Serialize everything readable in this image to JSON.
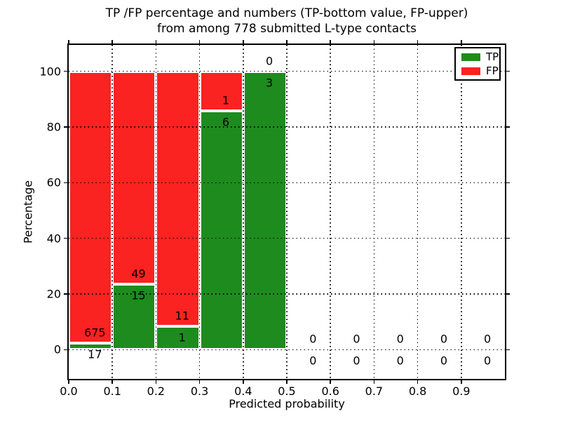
{
  "title": {
    "line1": "TP /FP percentage and numbers (TP-bottom value, FP-upper)",
    "line2": "from among 778 submitted L-type contacts"
  },
  "axes": {
    "xlabel": "Predicted probability",
    "ylabel": "Percentage",
    "x_ticks": [
      {
        "v": 0.0,
        "label": "0.0"
      },
      {
        "v": 0.1,
        "label": "0.1"
      },
      {
        "v": 0.2,
        "label": "0.2"
      },
      {
        "v": 0.3,
        "label": "0.3"
      },
      {
        "v": 0.4,
        "label": "0.4"
      },
      {
        "v": 0.5,
        "label": "0.5"
      },
      {
        "v": 0.6,
        "label": "0.6"
      },
      {
        "v": 0.7,
        "label": "0.7"
      },
      {
        "v": 0.8,
        "label": "0.8"
      },
      {
        "v": 0.9,
        "label": "0.9"
      }
    ],
    "y_ticks": [
      {
        "v": 0,
        "label": "0"
      },
      {
        "v": 20,
        "label": "20"
      },
      {
        "v": 40,
        "label": "40"
      },
      {
        "v": 60,
        "label": "60"
      },
      {
        "v": 80,
        "label": "80"
      },
      {
        "v": 100,
        "label": "100"
      }
    ]
  },
  "colors": {
    "tp": "#1e8b1e",
    "fp": "#fb2222",
    "bar_edge": "#ffffff",
    "grid": "#000000"
  },
  "legend": {
    "position": "upper right",
    "entries": [
      {
        "label": "TP",
        "color": "#1e8b1e"
      },
      {
        "label": "FP",
        "color": "#fb2222"
      }
    ]
  },
  "chart_data": {
    "type": "bar",
    "stacked": true,
    "unit": "percent",
    "title": "TP /FP percentage and numbers (TP-bottom value, FP-upper) from among 778 submitted L-type contacts",
    "xlabel": "Predicted probability",
    "ylabel": "Percentage",
    "xlim": [
      0.0,
      1.0
    ],
    "ylim": [
      -10.5,
      109.5
    ],
    "bin_width": 0.1,
    "total_contacts": 778,
    "grid": {
      "style": "dotted",
      "y_values": [
        0,
        20,
        40,
        60,
        80,
        100
      ],
      "x_values": [
        0.1,
        0.2,
        0.3,
        0.4,
        0.5,
        0.6,
        0.7,
        0.8,
        0.9
      ]
    },
    "label_x_offset": 0.06,
    "series": [
      {
        "name": "TP",
        "color": "#1e8b1e",
        "counts": [
          17,
          15,
          1,
          6,
          3,
          0,
          0,
          0,
          0,
          0
        ]
      },
      {
        "name": "FP",
        "color": "#fb2222",
        "counts": [
          675,
          49,
          11,
          1,
          0,
          0,
          0,
          0,
          0,
          0
        ]
      }
    ],
    "bins": [
      {
        "x0": 0.0,
        "x1": 0.1,
        "tp": 17,
        "fp": 675,
        "tp_pct": 2.457,
        "fp_pct": 97.543
      },
      {
        "x0": 0.1,
        "x1": 0.2,
        "tp": 15,
        "fp": 49,
        "tp_pct": 23.438,
        "fp_pct": 76.562
      },
      {
        "x0": 0.2,
        "x1": 0.3,
        "tp": 1,
        "fp": 11,
        "tp_pct": 8.333,
        "fp_pct": 91.667
      },
      {
        "x0": 0.3,
        "x1": 0.4,
        "tp": 6,
        "fp": 1,
        "tp_pct": 85.714,
        "fp_pct": 14.286
      },
      {
        "x0": 0.4,
        "x1": 0.5,
        "tp": 3,
        "fp": 0,
        "tp_pct": 100.0,
        "fp_pct": 0.0
      },
      {
        "x0": 0.5,
        "x1": 0.6,
        "tp": 0,
        "fp": 0,
        "tp_pct": 0.0,
        "fp_pct": 0.0
      },
      {
        "x0": 0.6,
        "x1": 0.7,
        "tp": 0,
        "fp": 0,
        "tp_pct": 0.0,
        "fp_pct": 0.0
      },
      {
        "x0": 0.7,
        "x1": 0.8,
        "tp": 0,
        "fp": 0,
        "tp_pct": 0.0,
        "fp_pct": 0.0
      },
      {
        "x0": 0.8,
        "x1": 0.9,
        "tp": 0,
        "fp": 0,
        "tp_pct": 0.0,
        "fp_pct": 0.0
      },
      {
        "x0": 0.9,
        "x1": 1.0,
        "tp": 0,
        "fp": 0,
        "tp_pct": 0.0,
        "fp_pct": 0.0
      }
    ]
  }
}
